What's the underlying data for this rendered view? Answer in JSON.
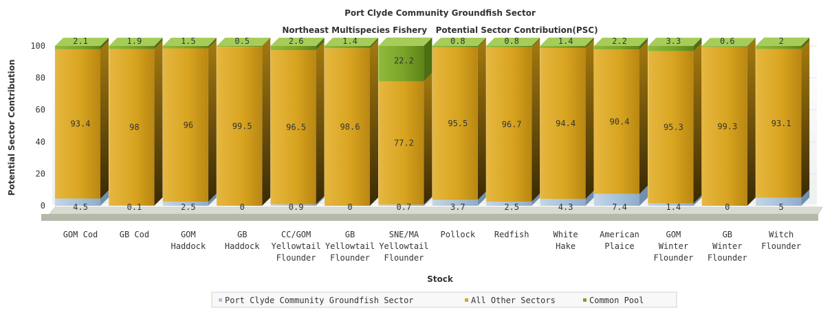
{
  "chart_data": {
    "type": "bar",
    "stacked": true,
    "title": "Port Clyde Community Groundfish Sector",
    "subtitle": "Northeast Multispecies Fishery   Potential Sector Contribution(PSC)",
    "xlabel": "Stock",
    "ylabel": "Potential Sector Contribution",
    "ylim": [
      0,
      100
    ],
    "yticks": [
      0,
      20,
      40,
      60,
      80,
      100
    ],
    "grid": true,
    "legend_position": "bottom-center",
    "categories": [
      [
        "GOM Cod"
      ],
      [
        "GB Cod"
      ],
      [
        "GOM",
        "Haddock"
      ],
      [
        "GB",
        "Haddock"
      ],
      [
        "CC/GOM",
        "Yellowtail",
        "Flounder"
      ],
      [
        "GB",
        "Yellowtail",
        "Flounder"
      ],
      [
        "SNE/MA",
        "Yellowtail",
        "Flounder"
      ],
      [
        "Pollock"
      ],
      [
        "Redfish"
      ],
      [
        "White",
        "Hake"
      ],
      [
        "American",
        "Plaice"
      ],
      [
        "GOM",
        "Winter",
        "Flounder"
      ],
      [
        "GB",
        "Winter",
        "Flounder"
      ],
      [
        "Witch",
        "Flounder"
      ]
    ],
    "series": [
      {
        "name": "Port Clyde Community Groundfish Sector",
        "color": "#a9c3dc",
        "values": [
          4.5,
          0.1,
          2.5,
          0,
          0.9,
          0,
          0.7,
          3.7,
          2.5,
          4.3,
          7.4,
          1.4,
          0,
          5
        ],
        "labels": [
          "4.5",
          "0.1",
          "2.5",
          "0",
          "0.9",
          "0",
          "0.7",
          "3.7",
          "2.5",
          "4.3",
          "7.4",
          "1.4",
          "0",
          "5"
        ]
      },
      {
        "name": "All Other Sectors",
        "color": "#d9a521",
        "values": [
          93.4,
          98,
          96,
          99.5,
          96.5,
          98.6,
          77.2,
          95.5,
          96.7,
          94.4,
          90.4,
          95.3,
          99.3,
          93.1
        ],
        "labels": [
          "93.4",
          "98",
          "96",
          "99.5",
          "96.5",
          "98.6",
          "77.2",
          "95.5",
          "96.7",
          "94.4",
          "90.4",
          "95.3",
          "99.3",
          "93.1"
        ]
      },
      {
        "name": "Common Pool",
        "color": "#7aa329",
        "values": [
          2.1,
          1.9,
          1.5,
          0.5,
          2.6,
          1.4,
          22.2,
          0.8,
          0.8,
          1.4,
          2.2,
          3.3,
          0.6,
          2
        ],
        "labels": [
          "2.1",
          "1.9",
          "1.5",
          "0.5",
          "2.6",
          "1.4",
          "22.2",
          "0.8",
          "0.8",
          "1.4",
          "2.2",
          "3.3",
          "0.6",
          "2"
        ]
      }
    ]
  }
}
